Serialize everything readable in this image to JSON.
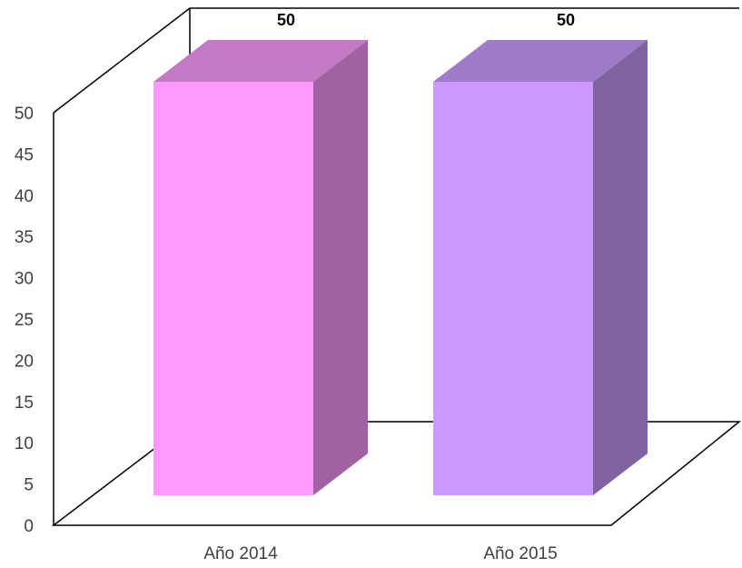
{
  "chart_data": {
    "type": "bar",
    "categories": [
      "Año 2014",
      "Año 2015"
    ],
    "values": [
      50,
      50
    ],
    "data_labels": [
      "50",
      "50"
    ],
    "ylim": [
      0,
      50
    ],
    "yticks": [
      0,
      5,
      10,
      15,
      20,
      25,
      30,
      35,
      40,
      45,
      50
    ],
    "grid": false,
    "legend": "none",
    "three_d": true,
    "colors": [
      {
        "front": "#FF99FF",
        "side": "#A162A4",
        "top": "#C479C4"
      },
      {
        "front": "#CC99FF",
        "side": "#7F639F",
        "top": "#9E7BC8"
      }
    ]
  }
}
